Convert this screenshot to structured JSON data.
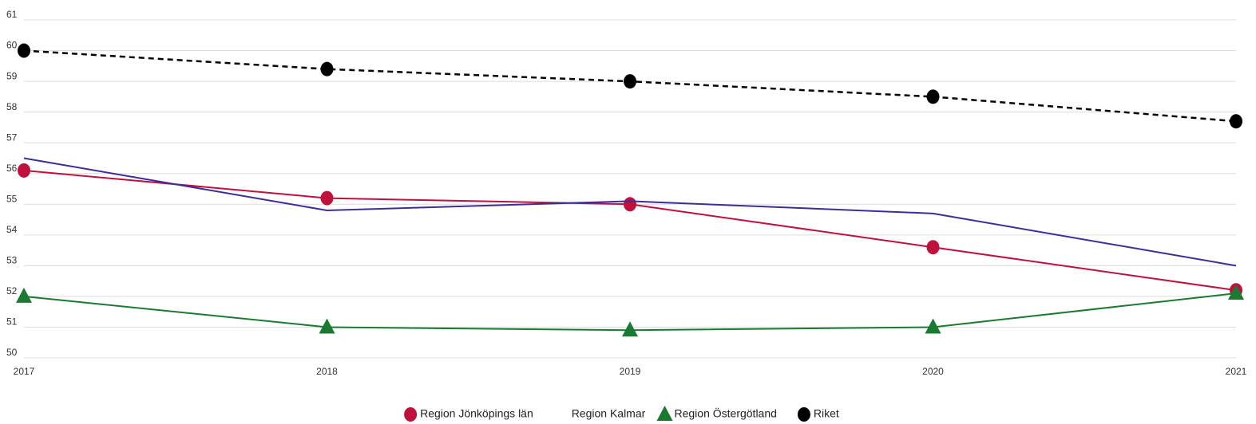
{
  "chart_data": {
    "type": "line",
    "categories": [
      "2017",
      "2018",
      "2019",
      "2020",
      "2021"
    ],
    "series": [
      {
        "name": "Region Jönköpings län",
        "color": "#c0103c",
        "marker": "circle",
        "dashed": false,
        "values": [
          56.1,
          55.2,
          55.0,
          53.6,
          52.2
        ]
      },
      {
        "name": "Region Kalmar",
        "color": "#3b2e9a",
        "marker": "none",
        "dashed": false,
        "values": [
          56.5,
          54.8,
          55.1,
          54.7,
          53.0
        ]
      },
      {
        "name": "Region Östergötland",
        "color": "#1a7a32",
        "marker": "triangle",
        "dashed": false,
        "values": [
          52.0,
          51.0,
          50.9,
          51.0,
          52.1
        ]
      },
      {
        "name": "Riket",
        "color": "#000000",
        "marker": "circle",
        "dashed": true,
        "values": [
          60.0,
          59.4,
          59.0,
          58.5,
          57.7
        ]
      }
    ],
    "ylim": [
      50,
      61
    ],
    "yticks": [
      50,
      51,
      52,
      53,
      54,
      55,
      56,
      57,
      58,
      59,
      60,
      61
    ],
    "grid": true,
    "legend": "bottom"
  }
}
